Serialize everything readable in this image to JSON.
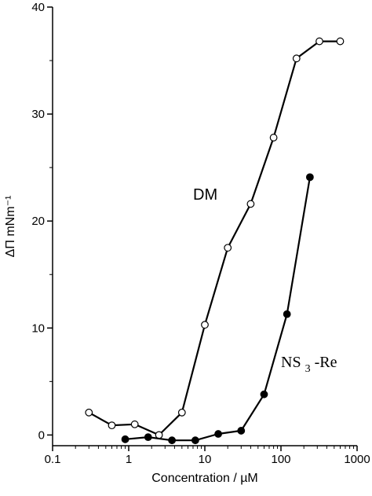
{
  "chart_data": {
    "type": "line",
    "title": "",
    "xlabel": "Concentration / µM",
    "ylabel": "ΔΠ mNm⁻¹",
    "xscale": "log",
    "xlim": [
      0.1,
      1000
    ],
    "ylim": [
      -1,
      40
    ],
    "xticks": [
      0.1,
      1,
      10,
      100,
      1000
    ],
    "xtick_labels": [
      "0.1",
      "1",
      "10",
      "100",
      "1000"
    ],
    "yticks": [
      0,
      10,
      20,
      30,
      40
    ],
    "ytick_labels": [
      "0",
      "10",
      "20",
      "30",
      "40"
    ],
    "grid": false,
    "legend": "none",
    "series": [
      {
        "name": "DM",
        "label_text": "DM",
        "marker": "open-circle",
        "color": "#000000",
        "x": [
          0.3,
          0.6,
          1.2,
          2.5,
          5,
          10,
          20,
          40,
          80,
          160,
          320,
          600
        ],
        "y": [
          2.1,
          0.9,
          1.0,
          0.0,
          2.1,
          10.3,
          17.5,
          21.6,
          27.8,
          35.2,
          36.8,
          36.8
        ]
      },
      {
        "name": "NS3-Re",
        "label_main": "NS",
        "label_sub": "3",
        "label_rest": "-Re",
        "marker": "filled-circle",
        "color": "#000000",
        "x": [
          0.9,
          1.8,
          3.7,
          7.5,
          15,
          30,
          60,
          120,
          240
        ],
        "y": [
          -0.4,
          -0.2,
          -0.5,
          -0.5,
          0.1,
          0.4,
          3.8,
          11.3,
          24.1
        ]
      }
    ]
  }
}
